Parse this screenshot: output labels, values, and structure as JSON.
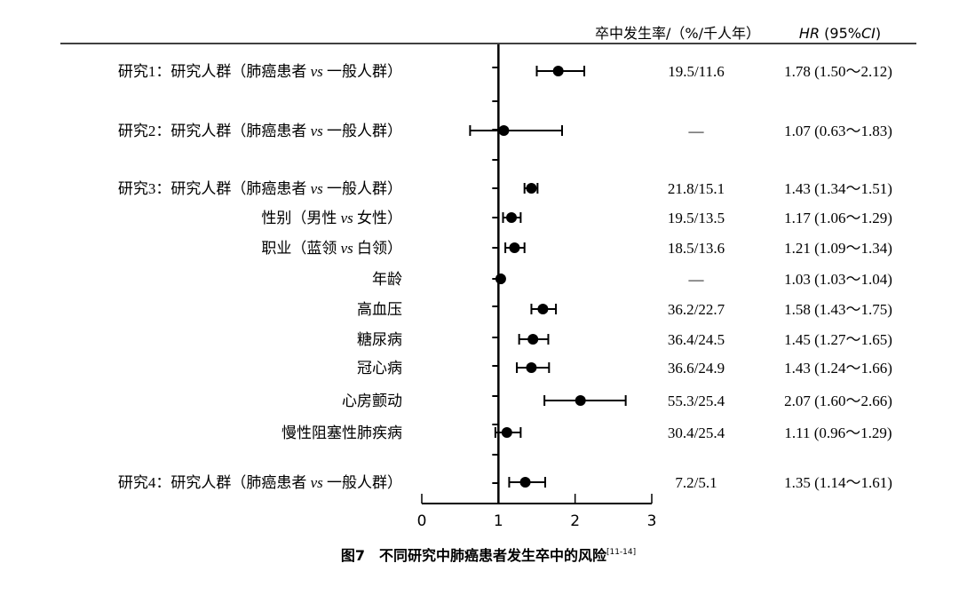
{
  "header": {
    "rate_col": "卒中发生率/（%/千人年）",
    "hr_col_italic": "HR",
    "hr_col_mid": " (95%",
    "hr_col_ci": "CI",
    "hr_col_end": ")"
  },
  "caption": {
    "text": "图7　不同研究中肺癌患者发生卒中的风险",
    "ref": "[11-14]"
  },
  "chart_data": {
    "type": "scatter",
    "subtype": "forest-plot",
    "xlim": [
      0,
      3
    ],
    "x_ticks": [
      "0",
      "1",
      "2",
      "3"
    ],
    "reference_line": 1,
    "rows": [
      {
        "pre": "研究1：研究人群（肺癌患者 ",
        "vs": "vs",
        "post": " 一般人群）",
        "rate": "19.5/11.6",
        "hr_text": "1.78 (1.50～2.12)",
        "hr": 1.78,
        "lo": 1.5,
        "hi": 2.12
      },
      {
        "pre": "研究2：研究人群（肺癌患者 ",
        "vs": "vs",
        "post": " 一般人群）",
        "rate": "—",
        "hr_text": "1.07 (0.63～1.83)",
        "hr": 1.07,
        "lo": 0.63,
        "hi": 1.83
      },
      {
        "pre": "研究3：研究人群（肺癌患者 ",
        "vs": "vs",
        "post": " 一般人群）",
        "rate": "21.8/15.1",
        "hr_text": "1.43 (1.34～1.51)",
        "hr": 1.43,
        "lo": 1.34,
        "hi": 1.51
      },
      {
        "pre": "性别（男性 ",
        "vs": "vs",
        "post": " 女性）",
        "rate": "19.5/13.5",
        "hr_text": "1.17 (1.06～1.29)",
        "hr": 1.17,
        "lo": 1.06,
        "hi": 1.29
      },
      {
        "pre": "职业（蓝领 ",
        "vs": "vs",
        "post": " 白领）",
        "rate": "18.5/13.6",
        "hr_text": "1.21 (1.09～1.34)",
        "hr": 1.21,
        "lo": 1.09,
        "hi": 1.34
      },
      {
        "pre": "年龄",
        "vs": "",
        "post": "",
        "rate": "—",
        "hr_text": "1.03 (1.03～1.04)",
        "hr": 1.03,
        "lo": 1.03,
        "hi": 1.04
      },
      {
        "pre": "高血压",
        "vs": "",
        "post": "",
        "rate": "36.2/22.7",
        "hr_text": "1.58 (1.43～1.75)",
        "hr": 1.58,
        "lo": 1.43,
        "hi": 1.75
      },
      {
        "pre": "糖尿病",
        "vs": "",
        "post": "",
        "rate": "36.4/24.5",
        "hr_text": "1.45 (1.27～1.65)",
        "hr": 1.45,
        "lo": 1.27,
        "hi": 1.65
      },
      {
        "pre": "冠心病",
        "vs": "",
        "post": "",
        "rate": "36.6/24.9",
        "hr_text": "1.43 (1.24～1.66)",
        "hr": 1.43,
        "lo": 1.24,
        "hi": 1.66
      },
      {
        "pre": "心房颤动",
        "vs": "",
        "post": "",
        "rate": "55.3/25.4",
        "hr_text": "2.07 (1.60～2.66)",
        "hr": 2.07,
        "lo": 1.6,
        "hi": 2.66
      },
      {
        "pre": "慢性阻塞性肺疾病",
        "vs": "",
        "post": "",
        "rate": "30.4/25.4",
        "hr_text": "1.11 (0.96～1.29)",
        "hr": 1.11,
        "lo": 0.96,
        "hi": 1.29
      },
      {
        "pre": "研究4：研究人群（肺癌患者 ",
        "vs": "vs",
        "post": " 一般人群）",
        "rate": "7.2/5.1",
        "hr_text": "1.35 (1.14～1.61)",
        "hr": 1.35,
        "lo": 1.14,
        "hi": 1.61
      }
    ]
  }
}
